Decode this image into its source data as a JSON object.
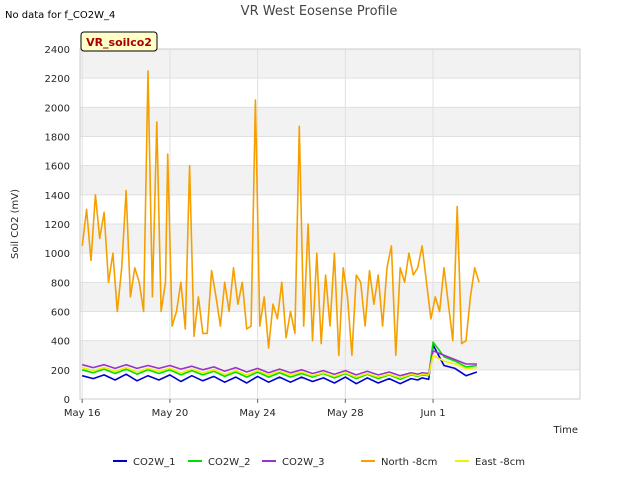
{
  "header": {
    "no_data_note": "No data for f_CO2W_4",
    "badge": "VR_soilco2"
  },
  "chart_data": {
    "type": "line",
    "title": "VR West Eosense Profile",
    "xlabel": "Time",
    "ylabel": "Soil CO2 (mV)",
    "ylim": [
      0,
      2400
    ],
    "xlim_days": [
      -0.1,
      22.7
    ],
    "x_ticks": [
      {
        "label": "May 16",
        "day": 0
      },
      {
        "label": "May 20",
        "day": 4
      },
      {
        "label": "May 24",
        "day": 8
      },
      {
        "label": "May 28",
        "day": 12
      },
      {
        "label": "Jun 1",
        "day": 16
      }
    ],
    "y_ticks": [
      0,
      200,
      400,
      600,
      800,
      1000,
      1200,
      1400,
      1600,
      1800,
      2000,
      2200,
      2400
    ],
    "grid": true,
    "band_shading": true,
    "legend_position": "bottom",
    "series": [
      {
        "name": "CO2W_1",
        "color": "#0000cc",
        "x": [
          0,
          0.5,
          1,
          1.5,
          2,
          2.5,
          3,
          3.5,
          4,
          4.5,
          5,
          5.5,
          6,
          6.5,
          7,
          7.5,
          8,
          8.5,
          9,
          9.5,
          10,
          10.5,
          11,
          11.5,
          12,
          12.5,
          13,
          13.5,
          14,
          14.5,
          15,
          15.3,
          15.5,
          15.8,
          16,
          16.5,
          17,
          17.5,
          18
        ],
        "y": [
          160,
          140,
          165,
          130,
          170,
          125,
          160,
          130,
          165,
          120,
          160,
          125,
          155,
          115,
          150,
          110,
          155,
          115,
          150,
          115,
          150,
          120,
          145,
          110,
          150,
          105,
          145,
          110,
          140,
          105,
          140,
          130,
          145,
          135,
          370,
          230,
          210,
          160,
          185
        ]
      },
      {
        "name": "CO2W_2",
        "color": "#00dd00",
        "x": [
          0,
          0.5,
          1,
          1.5,
          2,
          2.5,
          3,
          3.5,
          4,
          4.5,
          5,
          5.5,
          6,
          6.5,
          7,
          7.5,
          8,
          8.5,
          9,
          9.5,
          10,
          10.5,
          11,
          11.5,
          12,
          12.5,
          13,
          13.5,
          14,
          14.5,
          15,
          15.3,
          15.5,
          15.8,
          16,
          16.5,
          17,
          17.5,
          18
        ],
        "y": [
          200,
          180,
          205,
          175,
          205,
          170,
          200,
          175,
          200,
          165,
          195,
          165,
          190,
          155,
          185,
          150,
          185,
          150,
          180,
          150,
          175,
          150,
          175,
          145,
          175,
          140,
          170,
          140,
          165,
          135,
          165,
          155,
          165,
          160,
          390,
          290,
          260,
          220,
          230
        ]
      },
      {
        "name": "CO2W_3",
        "color": "#9933cc",
        "x": [
          0,
          0.5,
          1,
          1.5,
          2,
          2.5,
          3,
          3.5,
          4,
          4.5,
          5,
          5.5,
          6,
          6.5,
          7,
          7.5,
          8,
          8.5,
          9,
          9.5,
          10,
          10.5,
          11,
          11.5,
          12,
          12.5,
          13,
          13.5,
          14,
          14.5,
          15,
          15.3,
          15.5,
          15.8,
          16,
          16.5,
          17,
          17.5,
          18
        ],
        "y": [
          235,
          215,
          235,
          210,
          235,
          210,
          230,
          210,
          230,
          205,
          225,
          200,
          220,
          190,
          215,
          185,
          210,
          180,
          205,
          180,
          200,
          175,
          195,
          170,
          195,
          165,
          190,
          165,
          185,
          160,
          180,
          170,
          180,
          175,
          330,
          300,
          270,
          240,
          240
        ]
      },
      {
        "name": "North -8cm",
        "color": "#f5a000",
        "x": [
          0,
          0.2,
          0.4,
          0.6,
          0.8,
          1.0,
          1.2,
          1.4,
          1.6,
          1.8,
          2.0,
          2.2,
          2.4,
          2.6,
          2.8,
          3.0,
          3.2,
          3.4,
          3.6,
          3.8,
          3.9,
          4.1,
          4.3,
          4.5,
          4.7,
          4.9,
          5.1,
          5.3,
          5.5,
          5.7,
          5.9,
          6.1,
          6.3,
          6.5,
          6.7,
          6.9,
          7.1,
          7.3,
          7.5,
          7.7,
          7.9,
          8.1,
          8.3,
          8.5,
          8.7,
          8.9,
          9.1,
          9.3,
          9.5,
          9.7,
          9.9,
          10.1,
          10.3,
          10.5,
          10.7,
          10.9,
          11.1,
          11.3,
          11.5,
          11.7,
          11.9,
          12.1,
          12.3,
          12.5,
          12.7,
          12.9,
          13.1,
          13.3,
          13.5,
          13.7,
          13.9,
          14.1,
          14.3,
          14.5,
          14.7,
          14.9,
          15.1,
          15.3,
          15.5,
          15.7,
          15.9,
          16.1,
          16.3,
          16.5,
          16.7,
          16.9,
          17.1,
          17.3,
          17.5,
          17.7,
          17.9,
          18.1
        ],
        "y": [
          1050,
          1300,
          950,
          1400,
          1100,
          1280,
          800,
          1000,
          600,
          900,
          1430,
          700,
          900,
          800,
          600,
          2250,
          700,
          1900,
          600,
          800,
          1680,
          500,
          600,
          800,
          480,
          1600,
          430,
          700,
          450,
          450,
          880,
          700,
          500,
          800,
          600,
          900,
          650,
          800,
          480,
          500,
          2050,
          500,
          700,
          350,
          650,
          550,
          800,
          420,
          600,
          450,
          1870,
          500,
          1200,
          400,
          1000,
          380,
          850,
          500,
          1000,
          300,
          900,
          700,
          300,
          850,
          800,
          500,
          880,
          650,
          850,
          500,
          900,
          1050,
          300,
          900,
          800,
          1000,
          850,
          900,
          1050,
          800,
          550,
          700,
          600,
          900,
          650,
          400,
          1320,
          380,
          400,
          700,
          900,
          800
        ]
      },
      {
        "name": "East -8cm",
        "color": "#f0f000",
        "x": [
          0,
          0.5,
          1,
          1.5,
          2,
          2.5,
          3,
          3.5,
          4,
          4.5,
          5,
          5.5,
          6,
          6.5,
          7,
          7.5,
          8,
          8.5,
          9,
          9.5,
          10,
          10.5,
          11,
          11.5,
          12,
          12.5,
          13,
          13.5,
          14,
          14.5,
          15,
          15.3,
          15.5,
          15.8,
          16,
          16.5,
          17,
          17.5,
          18
        ],
        "y": [
          215,
          195,
          215,
          190,
          215,
          185,
          210,
          190,
          210,
          180,
          205,
          180,
          200,
          170,
          195,
          165,
          195,
          165,
          190,
          165,
          185,
          160,
          180,
          155,
          180,
          150,
          175,
          150,
          170,
          145,
          170,
          160,
          170,
          165,
          300,
          260,
          240,
          210,
          215
        ]
      }
    ]
  }
}
